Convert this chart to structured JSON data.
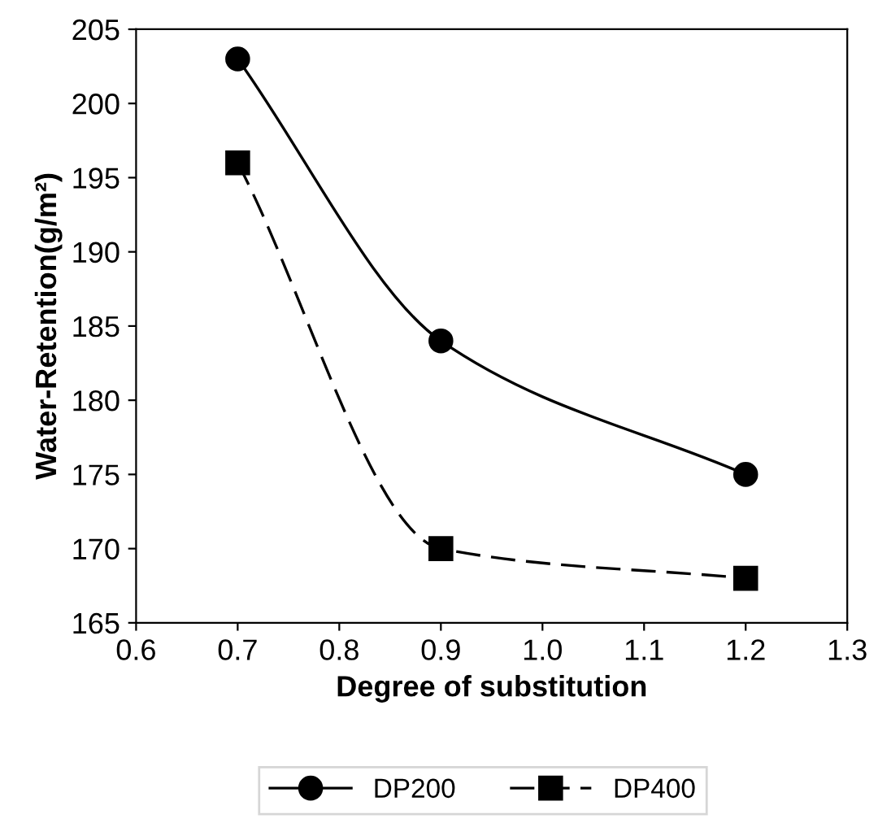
{
  "chart_data": {
    "type": "line",
    "xlabel": "Degree of substitution",
    "ylabel": "Water-Retention(g/m²)",
    "x": [
      0.7,
      0.9,
      1.2
    ],
    "series": [
      {
        "name": "DP200",
        "color": "#000000",
        "values": [
          203,
          184,
          175
        ],
        "marker": "circle",
        "line_style": "solid"
      },
      {
        "name": "DP400",
        "color": "#000000",
        "values": [
          196,
          170,
          168
        ],
        "marker": "square",
        "line_style": "dashed"
      }
    ],
    "xlim": [
      0.6,
      1.3
    ],
    "xticks": [
      0.6,
      0.7,
      0.8,
      0.9,
      {
        "value": 1.0,
        "label": "1.0"
      },
      1.1,
      1.2,
      1.3
    ],
    "ylim": [
      165,
      205
    ],
    "yticks": [
      165,
      170,
      175,
      180,
      185,
      190,
      195,
      200,
      205
    ],
    "grid": false,
    "legend": "bottom"
  }
}
